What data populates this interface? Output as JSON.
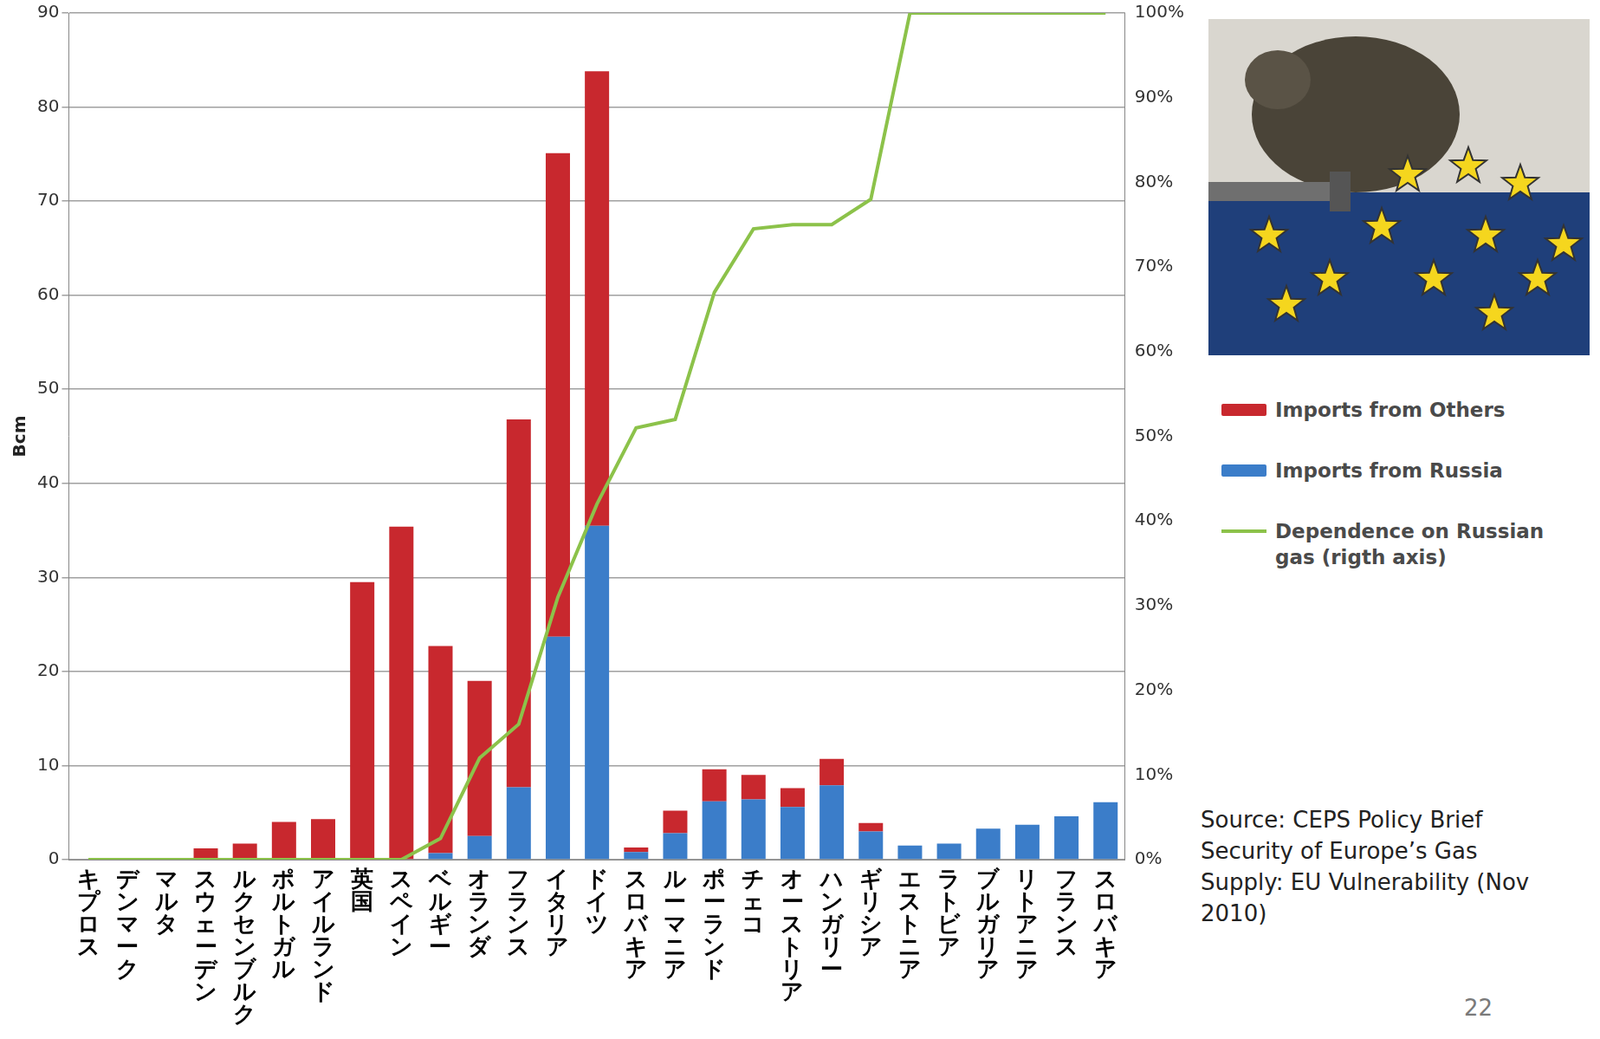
{
  "chart_data": {
    "type": "bar",
    "stacked": true,
    "grid": true,
    "legend": "right",
    "y_label": "Bcm",
    "source": "Source: CEPS Policy Brief Security of Europe’s Gas Supply: EU Vulnerability (Nov 2010)",
    "page_number": 22,
    "categories": [
      "キプロス",
      "デンマーク",
      "マルタ",
      "スウェーデン",
      "ルクセンブルク",
      "ポルトガル",
      "アイルランド",
      "英国",
      "スペイン",
      "ベルギー",
      "オランダ",
      "フランス",
      "イタリア",
      "ドイツ",
      "スロバキア",
      "ルーマニア",
      "ポーランド",
      "チェコ",
      "オーストリア",
      "ハンガリー",
      "ギリシア",
      "エストニア",
      "ラトビア",
      "ブルガリア",
      "リトアニア",
      "フランス",
      "スロバキア"
    ],
    "series": [
      {
        "name": "Imports from Others",
        "color": "#c8282e",
        "type": "bar",
        "values": [
          0,
          0,
          0,
          1.2,
          1.7,
          4.0,
          4.3,
          29.5,
          35.4,
          22.0,
          16.5,
          39.1,
          51.4,
          48.3,
          0.5,
          2.4,
          3.4,
          2.6,
          2.0,
          2.8,
          0.9,
          0,
          0,
          0,
          0,
          0,
          0
        ]
      },
      {
        "name": "Imports from Russia",
        "color": "#3b7dc9",
        "type": "bar",
        "values": [
          0,
          0,
          0,
          0,
          0,
          0,
          0,
          0,
          0,
          0.7,
          2.5,
          7.7,
          23.7,
          35.5,
          0.8,
          2.8,
          6.2,
          6.4,
          5.6,
          7.9,
          3.0,
          1.5,
          1.7,
          3.3,
          3.7,
          4.6,
          6.1
        ]
      },
      {
        "name": "Dependence on Russian gas (rigth axis)",
        "color": "#8cc24a",
        "type": "line",
        "axis": "y2",
        "values": [
          0,
          0,
          0,
          0,
          0,
          0,
          0,
          0,
          0,
          2.5,
          12,
          16,
          31,
          42,
          51,
          52,
          67,
          74.5,
          75,
          75,
          78,
          100,
          100,
          100,
          100,
          100,
          100
        ]
      }
    ],
    "ylim": [
      0,
      90
    ],
    "yticks": [
      0,
      10,
      20,
      30,
      40,
      50,
      60,
      70,
      80,
      90
    ],
    "y2lim": [
      0,
      100
    ],
    "y2ticks": [
      {
        "value": 0,
        "label": "0%"
      },
      {
        "value": 10,
        "label": "10%"
      },
      {
        "value": 20,
        "label": "20%"
      },
      {
        "value": 30,
        "label": "30%"
      },
      {
        "value": 40,
        "label": "40%"
      },
      {
        "value": 50,
        "label": "50%"
      },
      {
        "value": 60,
        "label": "60%"
      },
      {
        "value": 70,
        "label": "70%"
      },
      {
        "value": 80,
        "label": "80%"
      },
      {
        "value": 90,
        "label": "90%"
      },
      {
        "value": 100,
        "label": "100%"
      }
    ]
  }
}
